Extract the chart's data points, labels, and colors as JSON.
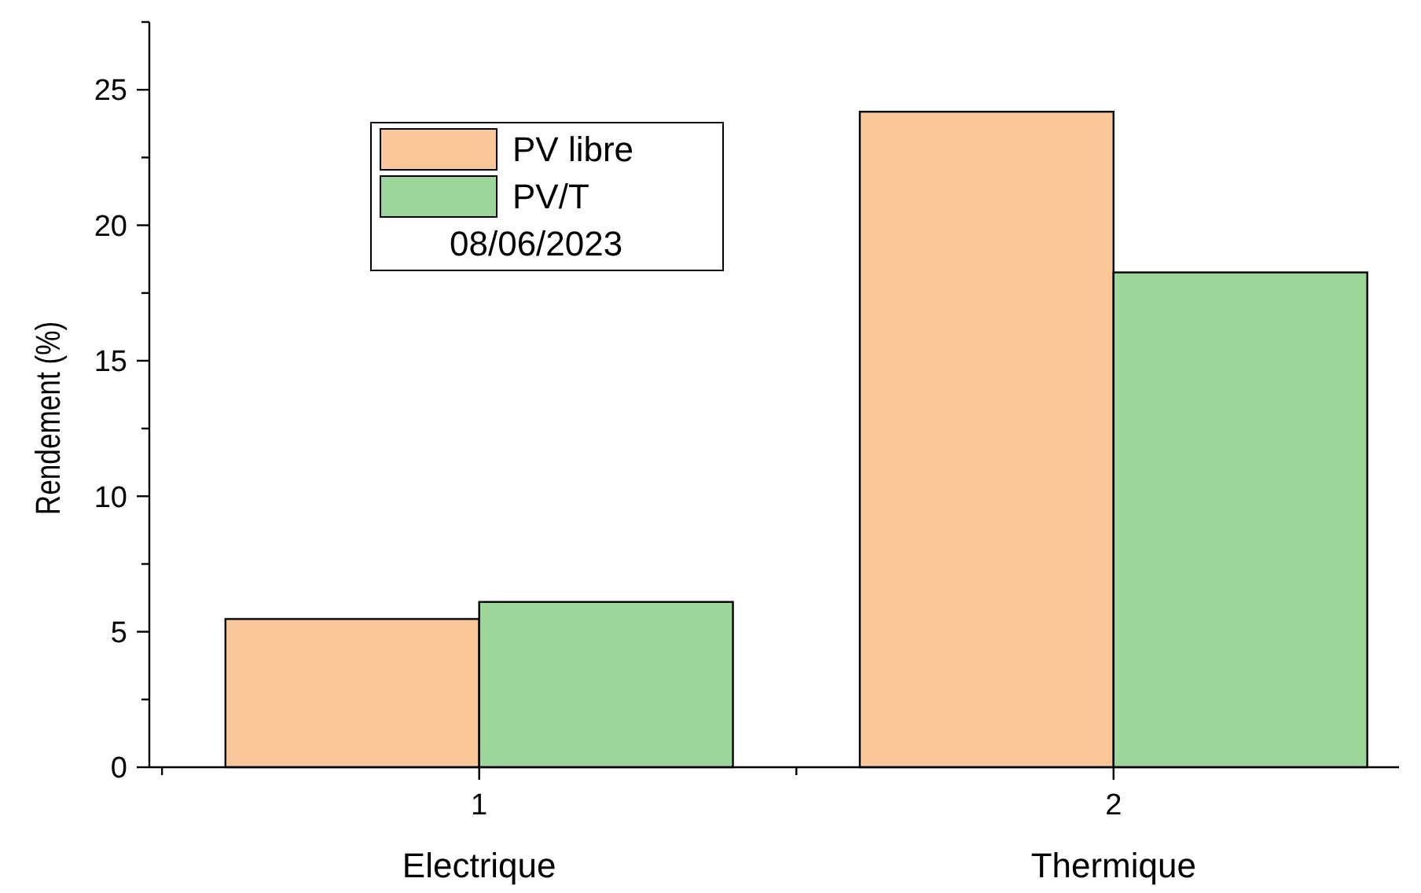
{
  "chart_data": {
    "type": "bar",
    "ylabel": "Rendement  (%)",
    "legend_title": "08/06/2023",
    "x": [
      1,
      2
    ],
    "series": [
      {
        "name": "PV libre",
        "color": "#f9c799",
        "values": [
          5.47,
          24.19
        ]
      },
      {
        "name": "PV/T",
        "color": "#9dd69a",
        "values": [
          6.1,
          18.26
        ]
      }
    ],
    "xlim": [
      0.48,
      2.45
    ],
    "xticks": [
      {
        "value": 0.5,
        "label": null
      },
      1,
      {
        "value": 1.5,
        "label": null
      },
      2
    ],
    "ylim": [
      0,
      27.5
    ],
    "yticks": [
      0,
      {
        "value": 2.5,
        "label": null
      },
      5,
      {
        "value": 7.5,
        "label": null
      },
      10,
      {
        "value": 12.5,
        "label": null
      },
      15,
      {
        "value": 17.5,
        "label": null
      },
      20,
      {
        "value": 22.5,
        "label": null
      },
      25,
      {
        "value": 27.5,
        "label": null
      }
    ],
    "annotations": [
      "Electrique",
      "Thermique"
    ],
    "legend": "top left",
    "grid": false
  }
}
